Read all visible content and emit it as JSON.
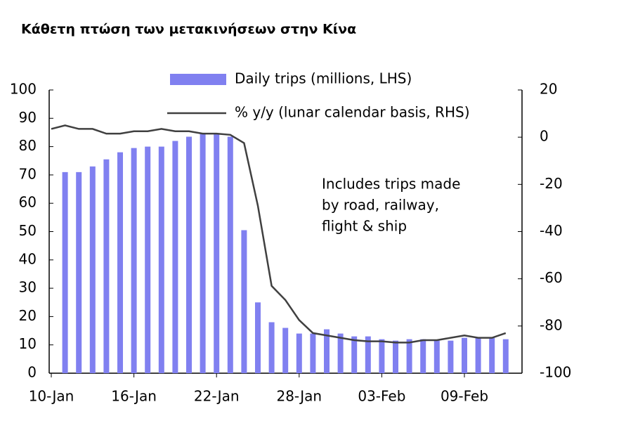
{
  "chart_data": {
    "type": "bar-line",
    "title": "Κάθετη πτώση των μετακινήσεων στην Κίνα",
    "categories": [
      "10-Jan",
      null,
      null,
      null,
      null,
      null,
      "16-Jan",
      null,
      null,
      null,
      null,
      null,
      "22-Jan",
      null,
      null,
      null,
      null,
      null,
      "28-Jan",
      null,
      null,
      null,
      null,
      null,
      "03-Feb",
      null,
      null,
      null,
      null,
      null,
      "09-Feb",
      null,
      null,
      null
    ],
    "series": [
      {
        "name": "Daily trips (millions, LHS)",
        "type": "bar",
        "color": "#8080f0",
        "values": [
          null,
          71,
          71,
          73,
          75.5,
          78,
          79.5,
          80,
          80,
          82,
          83.5,
          84.5,
          84.5,
          83.5,
          50.5,
          25,
          18,
          16,
          14,
          14,
          15.5,
          14,
          13,
          13,
          12,
          11.5,
          12,
          12,
          11.5,
          11.5,
          12.5,
          12.5,
          12.5,
          12
        ]
      },
      {
        "name": "% y/y (lunar calendar basis, RHS)",
        "type": "line",
        "axis": "y2",
        "color": "#404040",
        "values": [
          3.5,
          5,
          3.5,
          3.5,
          1.5,
          1.5,
          2.5,
          2.5,
          3.5,
          2.5,
          2.5,
          1.5,
          1.5,
          1,
          -2.5,
          -29,
          -63,
          -69,
          -77.5,
          -83,
          -84,
          -85,
          -86,
          -86.5,
          -86.5,
          -87,
          -87,
          -86,
          -86,
          -85,
          -84,
          -85,
          -85,
          -83
        ]
      }
    ],
    "annotation": [
      "Includes trips made",
      "by road, railway,",
      "flight & ship"
    ],
    "ylim": [
      0,
      100
    ],
    "yticks": [
      0,
      10,
      20,
      30,
      40,
      50,
      60,
      70,
      80,
      90,
      100
    ],
    "y2lim": [
      -100,
      20
    ],
    "y2ticks": [
      -100,
      -80,
      -60,
      -40,
      -20,
      0,
      20
    ]
  }
}
